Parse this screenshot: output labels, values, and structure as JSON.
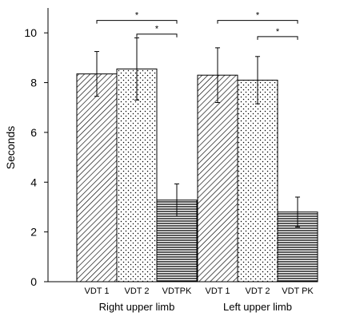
{
  "chart_data": {
    "type": "bar",
    "title": "",
    "xlabel": "",
    "ylabel": "Seconds",
    "ylim": [
      0,
      10
    ],
    "yticks": [
      0,
      2,
      4,
      6,
      8,
      10
    ],
    "grid": false,
    "legend": "none",
    "groups": [
      {
        "label": "Right upper limb",
        "bars": [
          {
            "label": "VDT 1",
            "value": 8.35,
            "error": 0.9,
            "pattern": "diagonal-hatch"
          },
          {
            "label": "VDT 2",
            "value": 8.55,
            "error": 1.25,
            "pattern": "dotted"
          },
          {
            "label": "VDTPK",
            "value": 3.28,
            "error": 0.65,
            "pattern": "horizontal-lines"
          }
        ]
      },
      {
        "label": "Left upper limb",
        "bars": [
          {
            "label": "VDT 1",
            "value": 8.3,
            "error": 1.1,
            "pattern": "diagonal-hatch"
          },
          {
            "label": "VDT 2",
            "value": 8.1,
            "error": 0.95,
            "pattern": "dotted"
          },
          {
            "label": "VDT PK",
            "value": 2.8,
            "error": 0.6,
            "pattern": "horizontal-lines"
          }
        ]
      }
    ],
    "significance": [
      {
        "group": 0,
        "from": 0,
        "to": 2,
        "label": "*",
        "level": 10.5
      },
      {
        "group": 0,
        "from": 1,
        "to": 2,
        "label": "*",
        "level": 9.95
      },
      {
        "group": 1,
        "from": 0,
        "to": 2,
        "label": "*",
        "level": 10.5
      },
      {
        "group": 1,
        "from": 1,
        "to": 2,
        "label": "*",
        "level": 9.85
      }
    ]
  }
}
